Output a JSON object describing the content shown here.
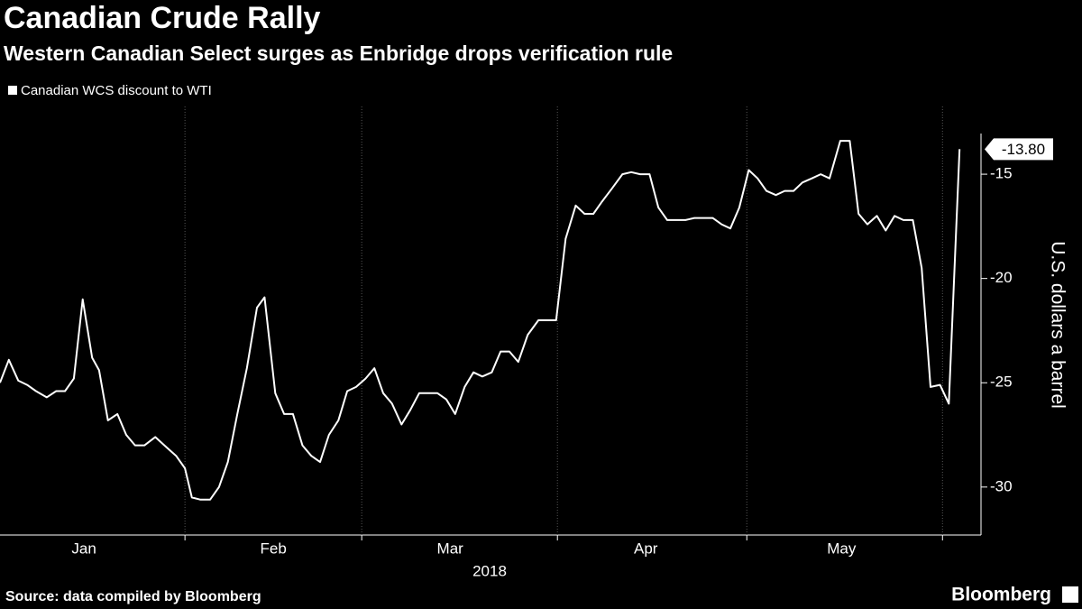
{
  "chart_data": {
    "type": "line",
    "title": "Canadian Crude Rally",
    "subtitle": "Western Canadian Select surges as Enbridge drops verification rule",
    "y_label": "U.S. dollars a barrel",
    "year_label": "2018",
    "source": "Source: data compiled by Bloomberg",
    "brand": "Bloomberg",
    "last_label": "-13.80",
    "legend_position": "top-left",
    "grid": true,
    "x": [
      2.7,
      4.1,
      5.6,
      7.0,
      8.4,
      10.1,
      11.6,
      13.0,
      14.4,
      15.8,
      17.3,
      18.4,
      19.8,
      21.3,
      22.7,
      24.1,
      25.6,
      27.3,
      29.1,
      30.6,
      32.0,
      33.1,
      34.4,
      36.0,
      37.4,
      38.8,
      40.3,
      41.8,
      43.4,
      44.6,
      46.3,
      47.7,
      49.1,
      50.6,
      52.0,
      53.4,
      54.8,
      56.3,
      57.7,
      59.1,
      60.6,
      62.0,
      63.4,
      64.8,
      66.3,
      67.7,
      69.1,
      70.6,
      72.0,
      73.4,
      74.8,
      76.3,
      77.7,
      79.1,
      80.6,
      82.0,
      83.4,
      84.8,
      86.3,
      88.0,
      89.4,
      90.8,
      92.3,
      93.9,
      95.3,
      96.7,
      98.1,
      99.6,
      101.3,
      102.7,
      104.1,
      105.6,
      107.0,
      108.4,
      109.8,
      111.3,
      112.7,
      114.1,
      115.6,
      117.0,
      118.4,
      119.8,
      121.3,
      122.7,
      124.1,
      125.6,
      127.0,
      128.4,
      129.8,
      131.3,
      132.7,
      134.1,
      135.8,
      137.3,
      138.7,
      140.1,
      141.6,
      143.0,
      144.4,
      145.8,
      147.3,
      148.7,
      150.1,
      151.6,
      153.0,
      154.7
    ],
    "series": [
      {
        "name": "Canadian WCS discount to WTI",
        "color": "#ffffff",
        "values": [
          -25.0,
          -23.9,
          -24.9,
          -25.1,
          -25.4,
          -25.7,
          -25.4,
          -25.4,
          -24.8,
          -21.0,
          -23.8,
          -24.4,
          -26.8,
          -26.5,
          -27.5,
          -28.0,
          -28.0,
          -27.6,
          -28.1,
          -28.5,
          -29.1,
          -30.5,
          -30.6,
          -30.6,
          -30.0,
          -28.8,
          -26.5,
          -24.3,
          -21.4,
          -20.9,
          -25.5,
          -26.5,
          -26.5,
          -28.0,
          -28.5,
          -28.8,
          -27.5,
          -26.8,
          -25.4,
          -25.2,
          -24.8,
          -24.3,
          -25.5,
          -26.0,
          -27.0,
          -26.3,
          -25.5,
          -25.5,
          -25.5,
          -25.8,
          -26.5,
          -25.2,
          -24.5,
          -24.7,
          -24.5,
          -23.5,
          -23.5,
          -24.0,
          -22.7,
          -22.0,
          -22.0,
          -22.0,
          -18.1,
          -16.5,
          -16.9,
          -16.9,
          -16.3,
          -15.7,
          -15.0,
          -14.9,
          -15.0,
          -15.0,
          -16.6,
          -17.2,
          -17.2,
          -17.2,
          -17.1,
          -17.1,
          -17.1,
          -17.4,
          -17.6,
          -16.6,
          -14.8,
          -15.2,
          -15.8,
          -16.0,
          -15.8,
          -15.8,
          -15.4,
          -15.2,
          -15.0,
          -15.2,
          -13.4,
          -13.4,
          -16.9,
          -17.4,
          -17.0,
          -17.7,
          -17.0,
          -17.2,
          -17.2,
          -19.5,
          -25.2,
          -25.1,
          -26.0,
          -13.8
        ]
      }
    ],
    "xlim": [
      2.7,
      158.1
    ],
    "xticks": [
      32,
      60,
      91,
      121,
      152
    ],
    "xlabels": [
      {
        "value": 16,
        "label": "Jan"
      },
      {
        "value": 46,
        "label": "Feb"
      },
      {
        "value": 74,
        "label": "Mar"
      },
      {
        "value": 105,
        "label": "Apr"
      },
      {
        "value": 136,
        "label": "May"
      }
    ],
    "ylim": [
      -32.3,
      -13.05
    ],
    "yticks": [
      -15,
      -20,
      -25,
      -30
    ]
  }
}
